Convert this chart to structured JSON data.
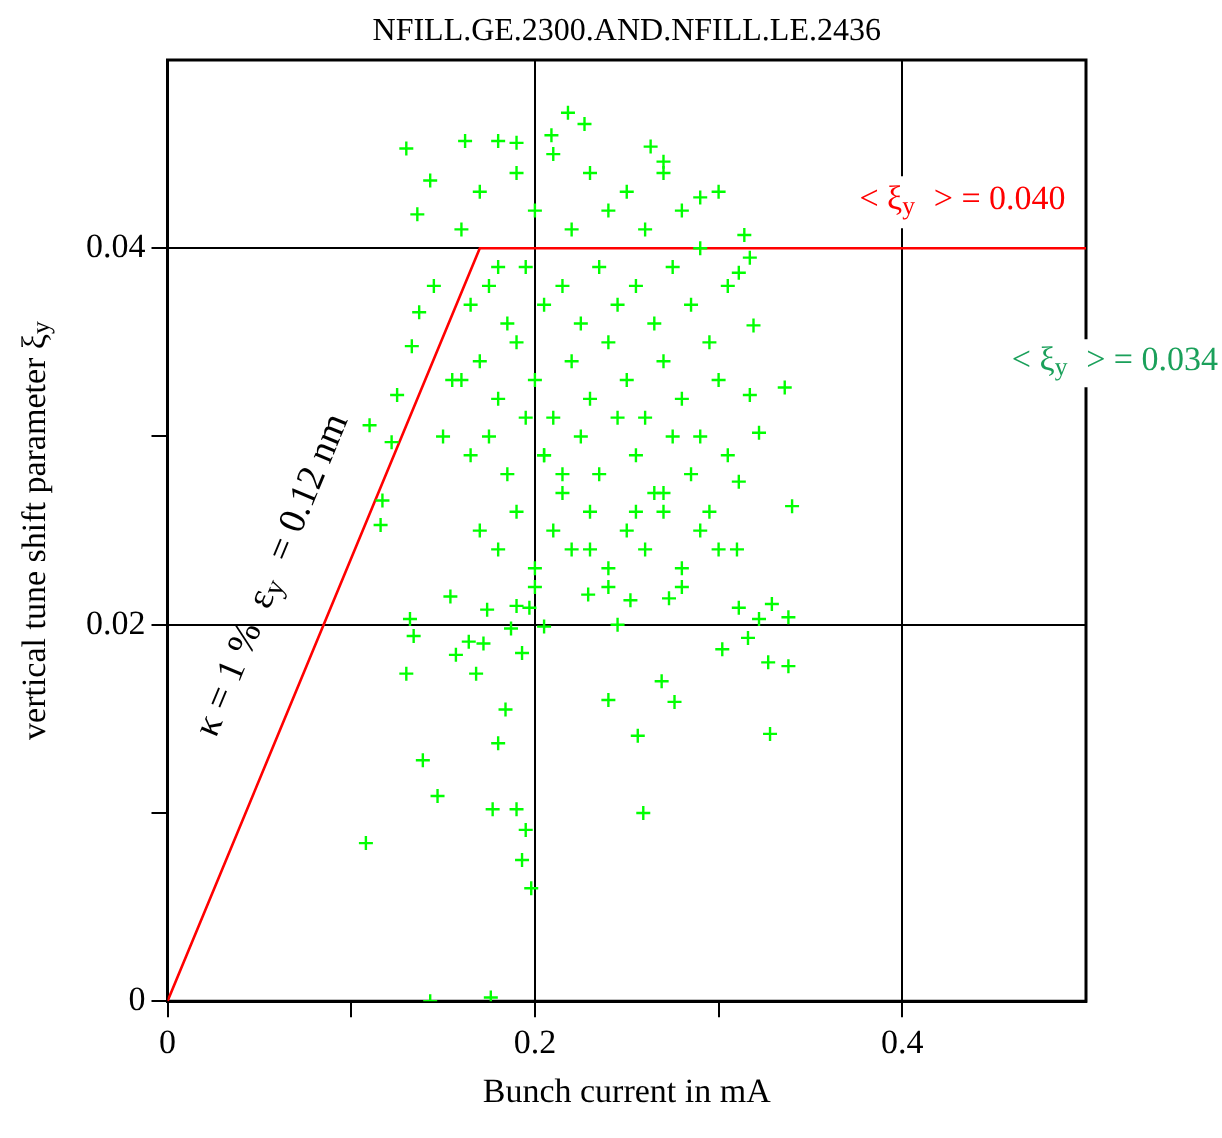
{
  "chart_data": {
    "type": "scatter",
    "title": "NFILL.GE.2300.AND.NFILL.LE.2436",
    "xlabel": "Bunch current in mA",
    "ylabel": "vertical tune shift parameter ξ$_{y}$",
    "xlim": [
      0,
      0.5
    ],
    "ylim": [
      0,
      0.05
    ],
    "xticks": [
      0,
      {
        "value": 0.1,
        "label": null
      },
      0.2,
      {
        "value": 0.3,
        "label": null
      },
      0.4
    ],
    "yticks": [
      0,
      {
        "value": 0.01,
        "label": null
      },
      0.02,
      {
        "value": 0.03,
        "label": null
      },
      0.04
    ],
    "grid": true,
    "legend": false,
    "annotations": [
      {
        "text": "< ξ$_{y}$ > = 0.040",
        "x": 0.43,
        "y": 0.04
      },
      "< ξ$_{y}$ > = 0.034",
      "κ = 1 %  ε$_{y}$ = 0.12 nm"
    ],
    "series": [
      {
        "marker": "cross",
        "color": "#00ff00",
        "x": [
          0.108,
          0.139,
          0.147,
          0.177,
          0.19,
          0.195,
          0.193,
          0.198,
          0.143,
          0.176,
          0.259,
          0.256,
          0.328,
          0.24,
          0.269,
          0.276,
          0.184,
          0.18,
          0.13,
          0.338,
          0.327,
          0.316,
          0.302,
          0.338,
          0.322,
          0.157,
          0.168,
          0.193,
          0.132,
          0.134,
          0.164,
          0.172,
          0.187,
          0.205,
          0.197,
          0.154,
          0.174,
          0.229,
          0.252,
          0.273,
          0.311,
          0.329,
          0.218,
          0.227,
          0.209,
          0.13,
          0.162,
          0.18,
          0.19,
          0.263,
          0.27,
          0.143,
          0.29,
          0.136,
          0.314,
          0.317,
          0.311,
          0.319,
          0.336,
          0.317,
          0.322,
          0.311,
          0.137,
          0.133,
          0.125,
          0.11,
          0.122,
          0.117,
          0.116,
          0.34,
          0.16,
          0.17,
          0.18,
          0.19,
          0.2,
          0.21,
          0.22,
          0.23,
          0.24,
          0.25,
          0.26,
          0.27,
          0.28,
          0.29,
          0.3,
          0.165,
          0.175,
          0.185,
          0.195,
          0.205,
          0.215,
          0.225,
          0.235,
          0.245,
          0.255,
          0.265,
          0.275,
          0.285,
          0.295,
          0.305,
          0.16,
          0.17,
          0.18,
          0.19,
          0.2,
          0.21,
          0.22,
          0.23,
          0.24,
          0.25,
          0.26,
          0.27,
          0.28,
          0.29,
          0.3,
          0.165,
          0.175,
          0.185,
          0.195,
          0.205,
          0.215,
          0.225,
          0.235,
          0.245,
          0.255,
          0.265,
          0.275,
          0.285,
          0.295,
          0.305,
          0.17,
          0.18,
          0.19,
          0.2,
          0.21,
          0.22,
          0.23,
          0.24,
          0.25,
          0.26,
          0.27,
          0.28,
          0.29,
          0.3,
          0.155,
          0.15,
          0.145,
          0.2,
          0.24,
          0.28,
          0.19,
          0.23,
          0.27,
          0.31,
          0.215,
          0.255,
          0.245,
          0.205
        ],
        "values": [
          0.0084,
          0.0128,
          0.0109,
          0.0102,
          0.0102,
          0.0091,
          0.0075,
          0.006,
          0,
          0.0002,
          0.01,
          0.0141,
          0.0142,
          0.016,
          0.017,
          0.0159,
          0.0155,
          0.0137,
          0.0174,
          0.0178,
          0.018,
          0.0193,
          0.0187,
          0.0204,
          0.0203,
          0.0184,
          0.0174,
          0.0185,
          0.0203,
          0.0194,
          0.0191,
          0.019,
          0.0198,
          0.0199,
          0.0209,
          0.0215,
          0.0208,
          0.0216,
          0.0213,
          0.0214,
          0.0209,
          0.0211,
          0.0472,
          0.0466,
          0.046,
          0.0453,
          0.0457,
          0.0457,
          0.0456,
          0.0454,
          0.0446,
          0.0436,
          0.0427,
          0.0418,
          0.0407,
          0.0395,
          0.0387,
          0.0359,
          0.0326,
          0.0322,
          0.0302,
          0.0276,
          0.0366,
          0.0348,
          0.0322,
          0.0306,
          0.0297,
          0.0266,
          0.0253,
          0.0263,
          0.041,
          0.043,
          0.039,
          0.044,
          0.042,
          0.045,
          0.041,
          0.044,
          0.042,
          0.043,
          0.041,
          0.044,
          0.042,
          0.04,
          0.043,
          0.037,
          0.038,
          0.036,
          0.039,
          0.037,
          0.038,
          0.036,
          0.039,
          0.037,
          0.038,
          0.036,
          0.039,
          0.037,
          0.035,
          0.038,
          0.033,
          0.034,
          0.032,
          0.035,
          0.033,
          0.031,
          0.034,
          0.032,
          0.035,
          0.033,
          0.031,
          0.034,
          0.032,
          0.03,
          0.033,
          0.029,
          0.03,
          0.028,
          0.031,
          0.029,
          0.027,
          0.03,
          0.028,
          0.031,
          0.029,
          0.027,
          0.03,
          0.028,
          0.026,
          0.029,
          0.025,
          0.024,
          0.026,
          0.023,
          0.025,
          0.024,
          0.026,
          0.023,
          0.025,
          0.024,
          0.026,
          0.023,
          0.025,
          0.024,
          0.033,
          0.03,
          0.038,
          0.022,
          0.022,
          0.022,
          0.021,
          0.024,
          0.027,
          0.024,
          0.028,
          0.026,
          0.02,
          0.029
        ]
      },
      {
        "type": "line",
        "color": "#ff0000",
        "x": [
          0,
          0.17,
          0.5
        ],
        "values": [
          0,
          0.04,
          0.04
        ]
      }
    ]
  }
}
